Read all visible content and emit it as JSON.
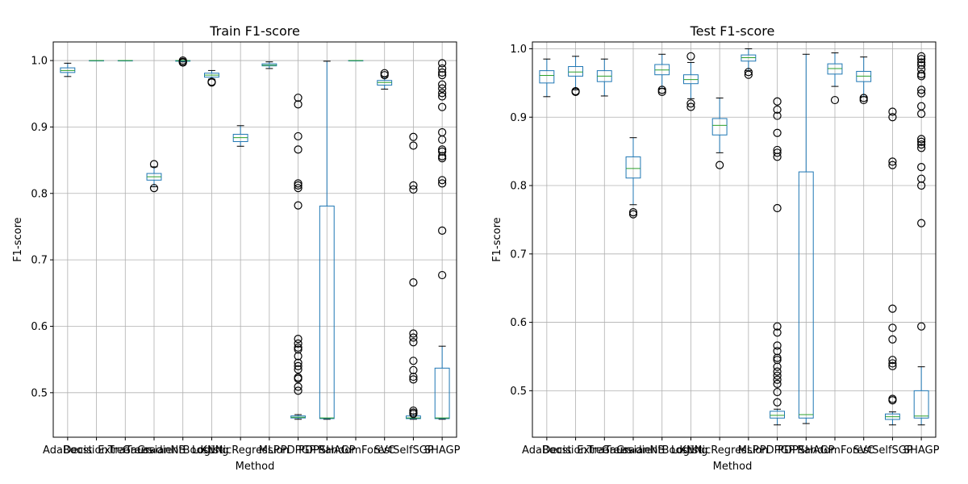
{
  "chart_data": [
    {
      "type": "box",
      "title": "Train F1-score",
      "xlabel": "Method",
      "ylabel": "F1-score",
      "categories": [
        "AdaBoost",
        "DecisionTree",
        "ExtraTrees",
        "GaussianNB",
        "GradientBoosting",
        "KNN",
        "LogisticRegression",
        "MLP",
        "PDPGP",
        "PDPSHAGP",
        "RandomForest",
        "SVC",
        "SelfSGP",
        "SHAGP"
      ],
      "yticks": [
        "0.5",
        "0.6",
        "0.7",
        "0.8",
        "0.9",
        "1.0"
      ],
      "ylim": [
        0.433,
        1.028
      ],
      "grid": true,
      "boxes": [
        {
          "name": "AdaBoost",
          "whislo": 0.976,
          "q1": 0.982,
          "med": 0.985,
          "q3": 0.989,
          "whishi": 0.996,
          "fliers": []
        },
        {
          "name": "DecisionTree",
          "whislo": 1.0,
          "q1": 1.0,
          "med": 1.0,
          "q3": 1.0,
          "whishi": 1.0,
          "fliers": []
        },
        {
          "name": "ExtraTrees",
          "whislo": 1.0,
          "q1": 1.0,
          "med": 1.0,
          "q3": 1.0,
          "whishi": 1.0,
          "fliers": []
        },
        {
          "name": "GaussianNB",
          "whislo": 0.81,
          "q1": 0.82,
          "med": 0.825,
          "q3": 0.83,
          "whishi": 0.84,
          "fliers": [
            0.844,
            0.808
          ]
        },
        {
          "name": "GradientBoosting",
          "whislo": 0.998,
          "q1": 0.999,
          "med": 1.0,
          "q3": 1.0,
          "whishi": 1.0,
          "fliers": [
            0.997,
            0.998,
            1.0
          ]
        },
        {
          "name": "KNN",
          "whislo": 0.972,
          "q1": 0.975,
          "med": 0.978,
          "q3": 0.981,
          "whishi": 0.985,
          "fliers": [
            0.967,
            0.968
          ]
        },
        {
          "name": "LogisticRegression",
          "whislo": 0.871,
          "q1": 0.878,
          "med": 0.884,
          "q3": 0.889,
          "whishi": 0.902,
          "fliers": []
        },
        {
          "name": "MLP",
          "whislo": 0.988,
          "q1": 0.992,
          "med": 0.993,
          "q3": 0.995,
          "whishi": 0.998,
          "fliers": []
        },
        {
          "name": "PDPGP",
          "whislo": 0.46,
          "q1": 0.462,
          "med": 0.463,
          "q3": 0.465,
          "whishi": 0.467,
          "fliers": [
            0.944,
            0.934,
            0.886,
            0.866,
            0.815,
            0.812,
            0.808,
            0.782,
            0.581,
            0.574,
            0.568,
            0.565,
            0.555,
            0.545,
            0.54,
            0.535,
            0.523,
            0.521,
            0.509,
            0.503
          ]
        },
        {
          "name": "PDPSHAGP",
          "whislo": 0.46,
          "q1": 0.461,
          "med": 0.462,
          "q3": 0.781,
          "whishi": 0.999,
          "fliers": []
        },
        {
          "name": "RandomForest",
          "whislo": 1.0,
          "q1": 1.0,
          "med": 1.0,
          "q3": 1.0,
          "whishi": 1.0,
          "fliers": []
        },
        {
          "name": "SVC",
          "whislo": 0.957,
          "q1": 0.963,
          "med": 0.967,
          "q3": 0.97,
          "whishi": 0.975,
          "fliers": [
            0.981,
            0.978
          ]
        },
        {
          "name": "SelfSGP",
          "whislo": 0.46,
          "q1": 0.461,
          "med": 0.462,
          "q3": 0.465,
          "whishi": 0.468,
          "fliers": [
            0.885,
            0.872,
            0.812,
            0.806,
            0.666,
            0.589,
            0.583,
            0.576,
            0.548,
            0.534,
            0.524,
            0.52,
            0.473,
            0.47,
            0.468
          ]
        },
        {
          "name": "SHAGP",
          "whislo": 0.46,
          "q1": 0.461,
          "med": 0.462,
          "q3": 0.537,
          "whishi": 0.57,
          "fliers": [
            0.996,
            0.988,
            0.982,
            0.978,
            0.964,
            0.958,
            0.951,
            0.946,
            0.93,
            0.892,
            0.881,
            0.866,
            0.863,
            0.856,
            0.853,
            0.82,
            0.815,
            0.744,
            0.677
          ]
        }
      ]
    },
    {
      "type": "box",
      "title": "Test F1-score",
      "xlabel": "Method",
      "ylabel": "F1-score",
      "categories": [
        "AdaBoost",
        "DecisionTree",
        "ExtraTrees",
        "GaussianNB",
        "GradientBoosting",
        "KNN",
        "LogisticRegression",
        "MLP",
        "PDPGP",
        "PDPSHAGP",
        "RandomForest",
        "SVC",
        "SelfSGP",
        "SHAGP"
      ],
      "yticks": [
        "0.5",
        "0.6",
        "0.7",
        "0.8",
        "0.9",
        "1.0"
      ],
      "ylim": [
        0.432,
        1.01
      ],
      "grid": true,
      "boxes": [
        {
          "name": "AdaBoost",
          "whislo": 0.93,
          "q1": 0.95,
          "med": 0.961,
          "q3": 0.968,
          "whishi": 0.985,
          "fliers": []
        },
        {
          "name": "DecisionTree",
          "whislo": 0.94,
          "q1": 0.96,
          "med": 0.966,
          "q3": 0.974,
          "whishi": 0.989,
          "fliers": [
            0.938,
            0.937
          ]
        },
        {
          "name": "ExtraTrees",
          "whislo": 0.931,
          "q1": 0.952,
          "med": 0.96,
          "q3": 0.968,
          "whishi": 0.985,
          "fliers": []
        },
        {
          "name": "GaussianNB",
          "whislo": 0.772,
          "q1": 0.811,
          "med": 0.825,
          "q3": 0.842,
          "whishi": 0.87,
          "fliers": [
            0.761,
            0.758
          ]
        },
        {
          "name": "GradientBoosting",
          "whislo": 0.942,
          "q1": 0.962,
          "med": 0.969,
          "q3": 0.977,
          "whishi": 0.992,
          "fliers": [
            0.94,
            0.937
          ]
        },
        {
          "name": "KNN",
          "whislo": 0.927,
          "q1": 0.949,
          "med": 0.955,
          "q3": 0.962,
          "whishi": 0.98,
          "fliers": [
            0.989,
            0.92,
            0.915
          ]
        },
        {
          "name": "LogisticRegression",
          "whislo": 0.848,
          "q1": 0.874,
          "med": 0.888,
          "q3": 0.898,
          "whishi": 0.928,
          "fliers": [
            0.83
          ]
        },
        {
          "name": "MLP",
          "whislo": 0.968,
          "q1": 0.982,
          "med": 0.987,
          "q3": 0.991,
          "whishi": 1.0,
          "fliers": [
            0.966,
            0.962
          ]
        },
        {
          "name": "PDPGP",
          "whislo": 0.45,
          "q1": 0.46,
          "med": 0.464,
          "q3": 0.47,
          "whishi": 0.473,
          "fliers": [
            0.923,
            0.911,
            0.902,
            0.877,
            0.852,
            0.848,
            0.842,
            0.767,
            0.594,
            0.585,
            0.566,
            0.558,
            0.548,
            0.545,
            0.535,
            0.528,
            0.522,
            0.516,
            0.51,
            0.498,
            0.483
          ]
        },
        {
          "name": "PDPSHAGP",
          "whislo": 0.452,
          "q1": 0.46,
          "med": 0.465,
          "q3": 0.82,
          "whishi": 0.992,
          "fliers": []
        },
        {
          "name": "RandomForest",
          "whislo": 0.945,
          "q1": 0.963,
          "med": 0.971,
          "q3": 0.978,
          "whishi": 0.994,
          "fliers": [
            0.925
          ]
        },
        {
          "name": "SVC",
          "whislo": 0.93,
          "q1": 0.952,
          "med": 0.96,
          "q3": 0.967,
          "whishi": 0.988,
          "fliers": [
            0.928,
            0.925
          ]
        },
        {
          "name": "SelfSGP",
          "whislo": 0.45,
          "q1": 0.458,
          "med": 0.462,
          "q3": 0.466,
          "whishi": 0.469,
          "fliers": [
            0.908,
            0.9,
            0.835,
            0.83,
            0.62,
            0.592,
            0.575,
            0.545,
            0.54,
            0.536,
            0.488,
            0.486
          ]
        },
        {
          "name": "SHAGP",
          "whislo": 0.45,
          "q1": 0.46,
          "med": 0.463,
          "q3": 0.5,
          "whishi": 0.535,
          "fliers": [
            0.989,
            0.985,
            0.98,
            0.976,
            0.97,
            0.963,
            0.96,
            0.94,
            0.935,
            0.916,
            0.905,
            0.868,
            0.864,
            0.86,
            0.855,
            0.827,
            0.81,
            0.8,
            0.745,
            0.594
          ]
        }
      ]
    }
  ],
  "colors": {
    "box": "#1f77b4",
    "median": "#2ca02c",
    "grid": "#b0b0b0",
    "flier": "#000000"
  }
}
